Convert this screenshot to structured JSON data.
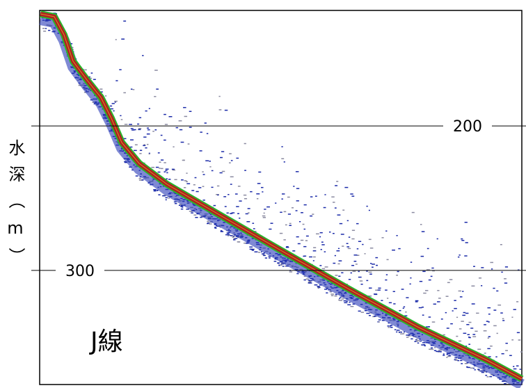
{
  "chart_data": {
    "type": "echogram",
    "y_label": "水深（m）",
    "annotation": "J線",
    "ylim": [
      120,
      379
    ],
    "yticks": [
      200,
      300
    ],
    "grid": true
  }
}
